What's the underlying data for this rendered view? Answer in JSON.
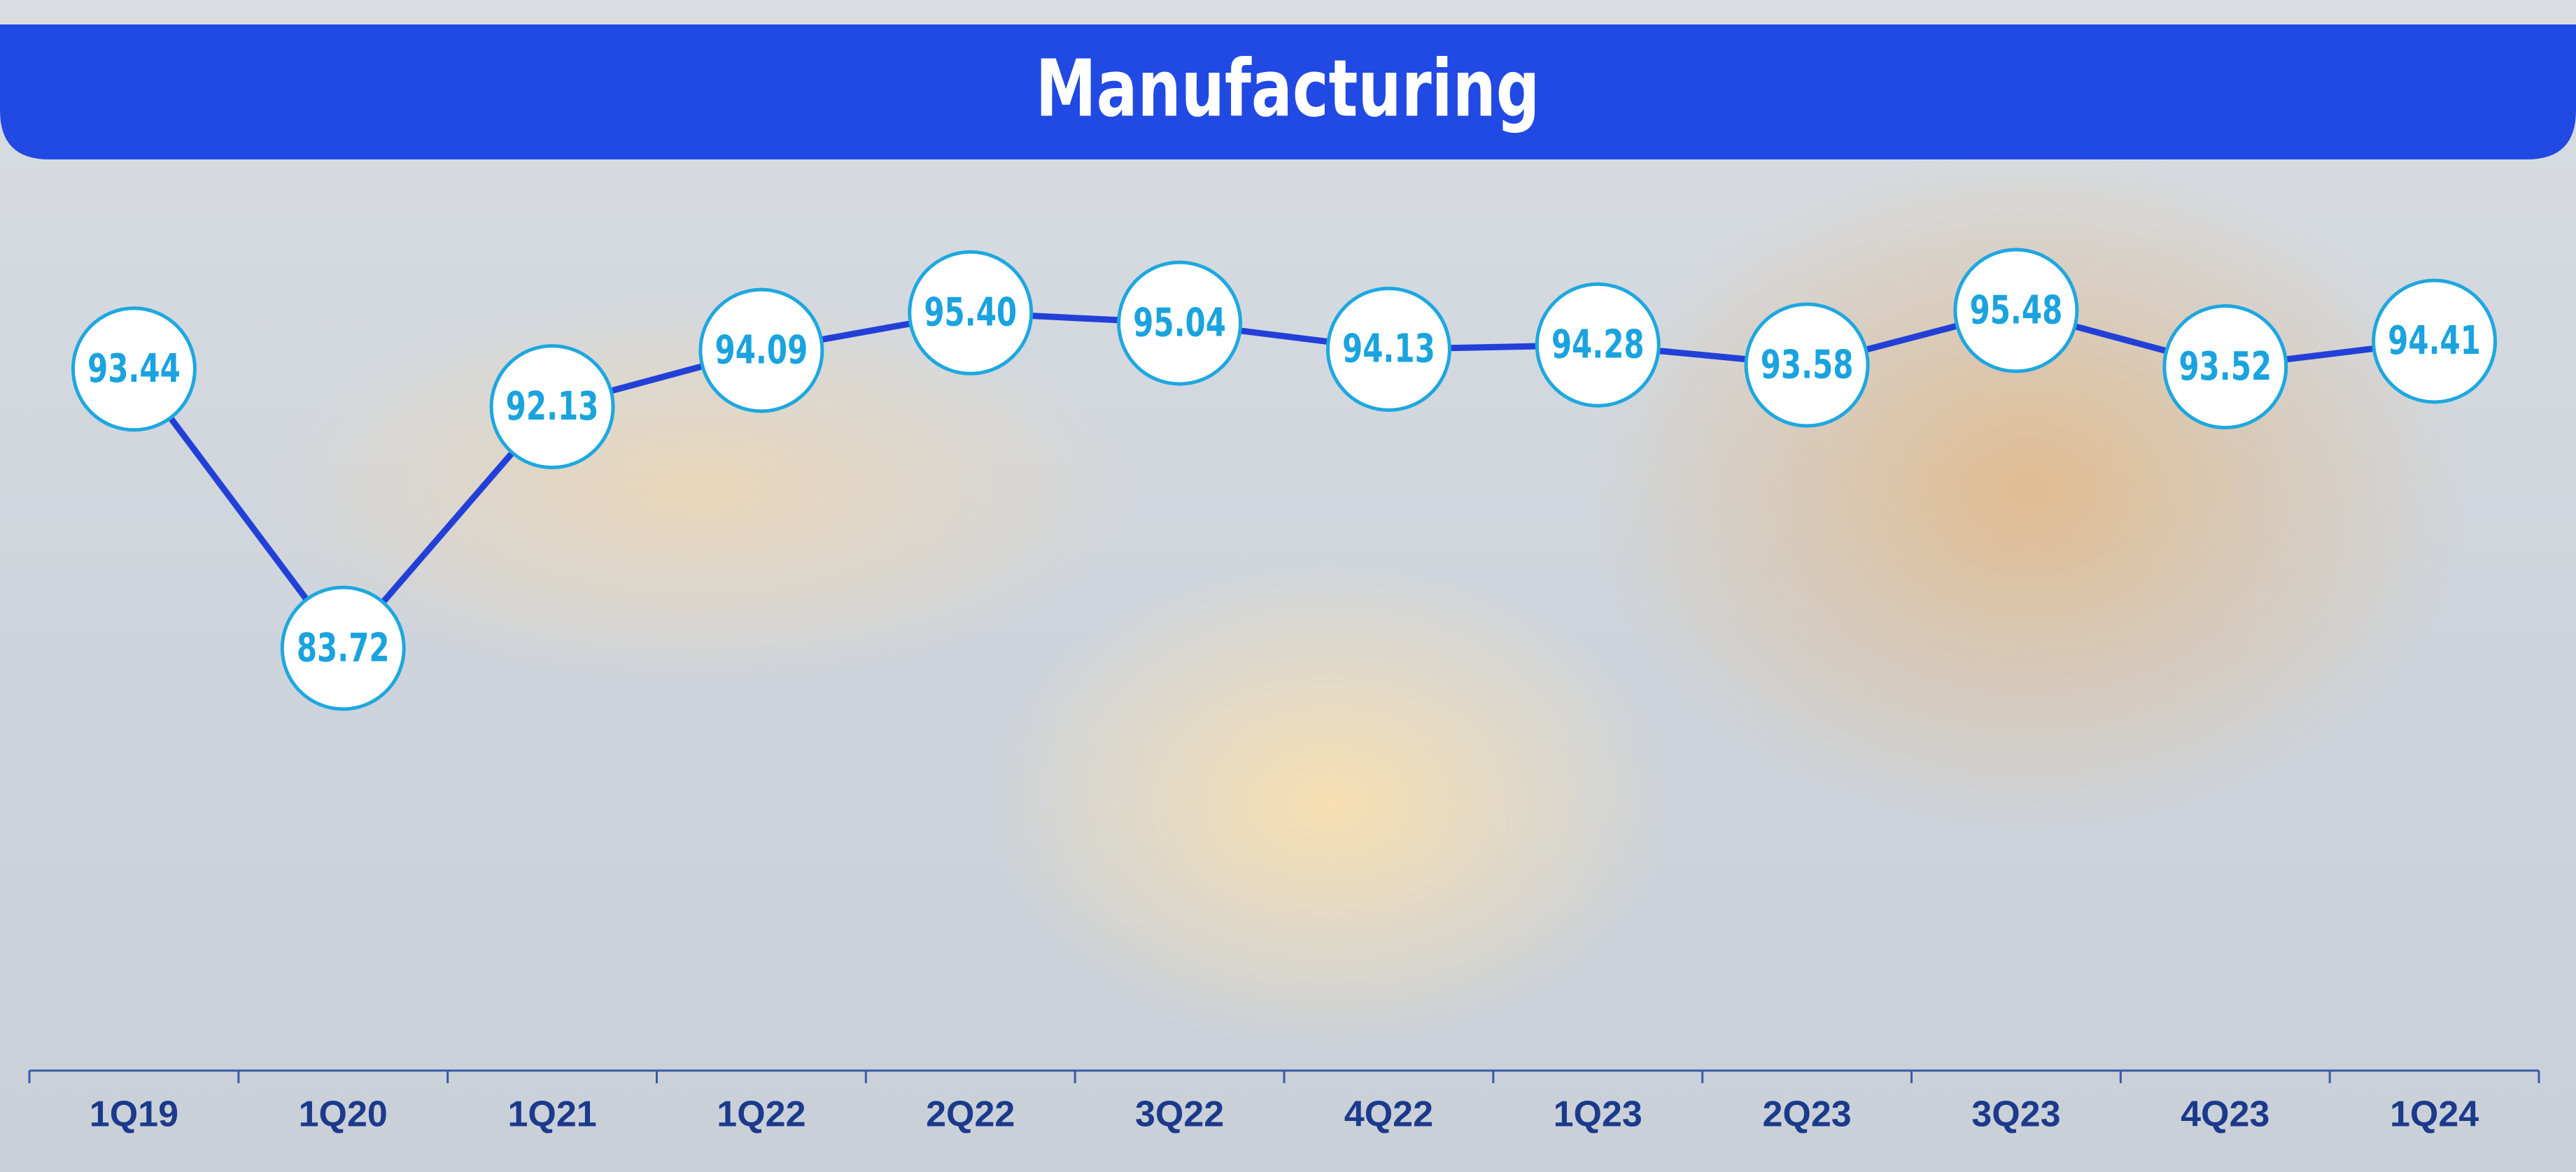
{
  "chart_data": {
    "type": "line",
    "title": "Manufacturing",
    "categories": [
      "1Q19",
      "1Q20",
      "1Q21",
      "1Q22",
      "2Q22",
      "3Q22",
      "4Q22",
      "1Q23",
      "2Q23",
      "3Q23",
      "4Q23",
      "1Q24"
    ],
    "values": [
      93.44,
      83.72,
      92.13,
      94.09,
      95.4,
      95.04,
      94.13,
      94.28,
      93.58,
      95.48,
      93.52,
      94.41
    ],
    "value_labels": [
      "93.44",
      "83.72",
      "92.13",
      "94.09",
      "95.40",
      "95.04",
      "94.13",
      "94.28",
      "93.58",
      "95.48",
      "93.52",
      "94.41"
    ],
    "color": "#2240d8"
  }
}
